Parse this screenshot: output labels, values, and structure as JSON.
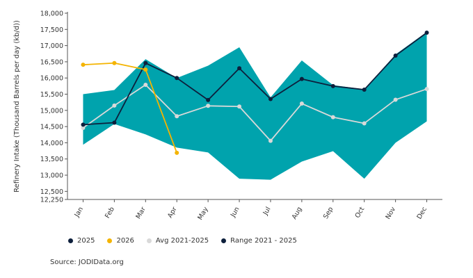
{
  "chart_data": {
    "type": "line",
    "ylabel": "Refinery Intake (Thousand Barrels per day (kb/d))",
    "ylim": [
      12250,
      18000
    ],
    "yticks": [
      12250,
      12500,
      13000,
      13500,
      14000,
      14500,
      15000,
      15500,
      16000,
      16500,
      17000,
      17500,
      18000
    ],
    "ytick_labels": [
      "12,250",
      "12,500",
      "13,000",
      "13,500",
      "14,000",
      "14,500",
      "15,000",
      "15,500",
      "16,000",
      "16,500",
      "17,000",
      "17,500",
      "18,000"
    ],
    "categories": [
      "Jan",
      "Feb",
      "Mar",
      "Apr",
      "May",
      "Jun",
      "Jul",
      "Aug",
      "Sep",
      "Oct",
      "Nov",
      "Dec"
    ],
    "range": {
      "name": "Range 2021 - 2025",
      "color": "#00A3AD",
      "upper": [
        15500,
        15630,
        16580,
        16000,
        16380,
        16950,
        15400,
        16540,
        15780,
        15650,
        16730,
        17420
      ],
      "lower": [
        13940,
        14580,
        14260,
        13850,
        13700,
        12890,
        12860,
        13420,
        13740,
        12890,
        14000,
        14660
      ]
    },
    "series": [
      {
        "name": "2025",
        "color": "#0d1f3c",
        "values": [
          14560,
          14620,
          16460,
          16000,
          15320,
          16300,
          15350,
          15970,
          15750,
          15640,
          16690,
          17400
        ]
      },
      {
        "name": "2026",
        "color": "#f4b400",
        "values": [
          16410,
          16460,
          16260,
          13690,
          null,
          null,
          null,
          null,
          null,
          null,
          null,
          null
        ]
      },
      {
        "name": "Avg 2021-2025",
        "color": "#d9d9d9",
        "values": [
          14460,
          15150,
          15790,
          14820,
          15140,
          15120,
          14060,
          15210,
          14790,
          14600,
          15330,
          15660
        ]
      }
    ],
    "legend": [
      {
        "label": "2025",
        "color": "#0d1f3c"
      },
      {
        "label": "2026",
        "color": "#f4b400"
      },
      {
        "label": "Avg 2021-2025",
        "color": "#d9d9d9"
      },
      {
        "label": "Range 2021 - 2025",
        "color": "#0d1f3c"
      }
    ],
    "legend_position": "bottom-left",
    "grid": false
  },
  "source": "Source: JODIData.org"
}
